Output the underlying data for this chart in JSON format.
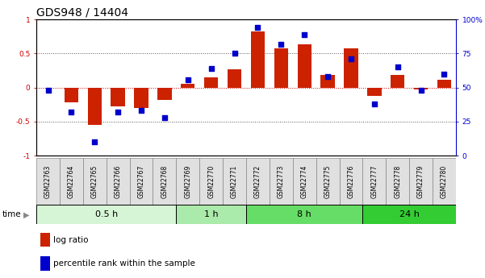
{
  "title": "GDS948 / 14404",
  "samples": [
    "GSM22763",
    "GSM22764",
    "GSM22765",
    "GSM22766",
    "GSM22767",
    "GSM22768",
    "GSM22769",
    "GSM22770",
    "GSM22771",
    "GSM22772",
    "GSM22773",
    "GSM22774",
    "GSM22775",
    "GSM22776",
    "GSM22777",
    "GSM22778",
    "GSM22779",
    "GSM22780"
  ],
  "log_ratio": [
    0.0,
    -0.22,
    -0.55,
    -0.28,
    -0.3,
    -0.18,
    0.05,
    0.15,
    0.27,
    0.82,
    0.57,
    0.64,
    0.18,
    0.58,
    -0.12,
    0.18,
    -0.03,
    0.12
  ],
  "percentile": [
    48,
    32,
    10,
    32,
    33,
    28,
    56,
    64,
    75,
    94,
    82,
    89,
    58,
    71,
    38,
    65,
    48,
    60
  ],
  "groups": [
    {
      "label": "0.5 h",
      "start": 0,
      "end": 6,
      "color": "#d6f5d6"
    },
    {
      "label": "1 h",
      "start": 6,
      "end": 9,
      "color": "#aaeaaa"
    },
    {
      "label": "8 h",
      "start": 9,
      "end": 14,
      "color": "#66dd66"
    },
    {
      "label": "24 h",
      "start": 14,
      "end": 18,
      "color": "#33cc33"
    }
  ],
  "bar_color": "#cc2200",
  "dot_color": "#0000cc",
  "ylim": [
    -1.0,
    1.0
  ],
  "yticks_left": [
    -1,
    -0.5,
    0,
    0.5,
    1
  ],
  "yticks_right": [
    0,
    25,
    50,
    75,
    100
  ],
  "hline_color": "#cc0000",
  "dotted_color": "#555555",
  "bg_color": "#ffffff",
  "plot_bg": "#ffffff",
  "title_fontsize": 10,
  "tick_fontsize": 6.5,
  "legend_fontsize": 7.5,
  "group_label_fontsize": 8
}
